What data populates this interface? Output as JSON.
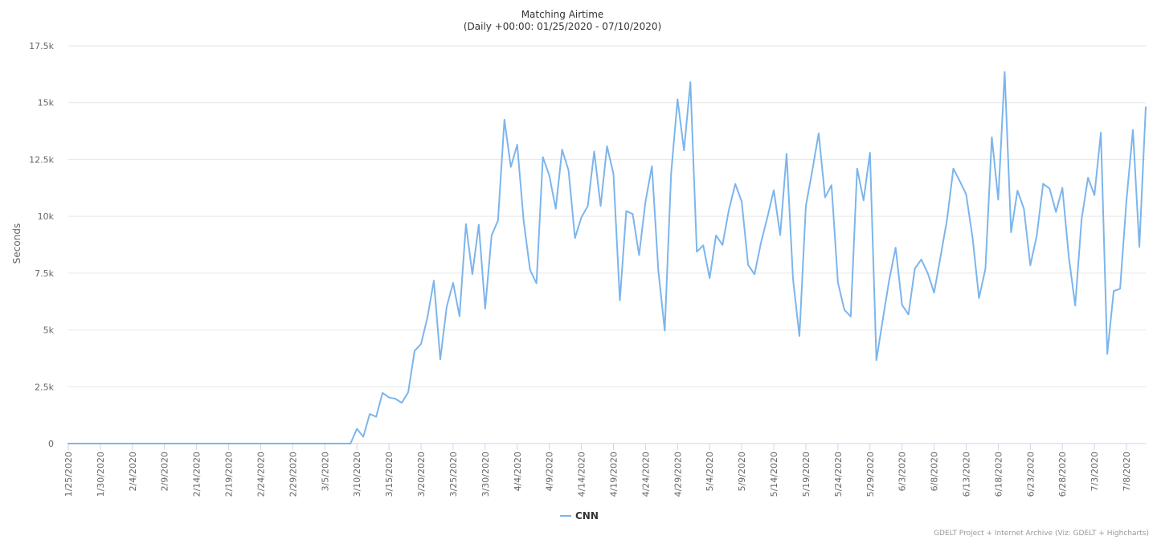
{
  "chart_data": {
    "type": "line",
    "title": "Matching Airtime",
    "subtitle": "(Daily +00:00: 01/25/2020 - 07/10/2020)",
    "xlabel": "",
    "ylabel": "Seconds",
    "x_start": "1/25/2020",
    "x_tick_labels": [
      "1/25/2020",
      "1/30/2020",
      "2/4/2020",
      "2/9/2020",
      "2/14/2020",
      "2/19/2020",
      "2/24/2020",
      "2/29/2020",
      "3/5/2020",
      "3/10/2020",
      "3/15/2020",
      "3/20/2020",
      "3/25/2020",
      "3/30/2020",
      "4/4/2020",
      "4/9/2020",
      "4/14/2020",
      "4/19/2020",
      "4/24/2020",
      "4/29/2020",
      "5/4/2020",
      "5/9/2020",
      "5/14/2020",
      "5/19/2020",
      "5/24/2020",
      "5/29/2020",
      "6/3/2020",
      "6/8/2020",
      "6/13/2020",
      "6/18/2020",
      "6/23/2020",
      "6/28/2020",
      "7/3/2020",
      "7/8/2020"
    ],
    "y_ticks": [
      0,
      2500,
      5000,
      7500,
      10000,
      12500,
      15000,
      17500
    ],
    "y_tick_labels": [
      "0",
      "2.5k",
      "5k",
      "7.5k",
      "10k",
      "12.5k",
      "15k",
      "17.5k"
    ],
    "ylim": [
      0,
      17500
    ],
    "grid": true,
    "legend": "bottom-center",
    "color": "#7cb5ec",
    "series": [
      {
        "name": "CNN",
        "values": [
          0,
          0,
          0,
          0,
          0,
          0,
          0,
          0,
          0,
          0,
          0,
          0,
          0,
          0,
          0,
          0,
          0,
          0,
          0,
          0,
          0,
          0,
          0,
          0,
          0,
          0,
          0,
          0,
          0,
          0,
          0,
          0,
          0,
          0,
          0,
          0,
          0,
          0,
          0,
          0,
          0,
          0,
          0,
          0,
          0,
          650,
          300,
          1300,
          1180,
          2230,
          2030,
          1970,
          1790,
          2260,
          4080,
          4380,
          5550,
          7170,
          3700,
          6020,
          7070,
          5600,
          9650,
          7450,
          9630,
          5940,
          9150,
          9820,
          14250,
          12170,
          13150,
          9800,
          7640,
          7050,
          12600,
          11800,
          10330,
          12930,
          12020,
          9040,
          9950,
          10450,
          12850,
          10450,
          13080,
          11870,
          6300,
          10230,
          10100,
          8290,
          10650,
          12200,
          7610,
          4970,
          11900,
          15150,
          12900,
          15900,
          8440,
          8720,
          7280,
          9160,
          8740,
          10280,
          11420,
          10650,
          7860,
          7450,
          8830,
          9950,
          11150,
          9170,
          12750,
          7240,
          4730,
          10450,
          12000,
          13650,
          10830,
          11370,
          7090,
          5890,
          5590,
          12100,
          10700,
          12800,
          3670,
          5460,
          7200,
          8620,
          6100,
          5680,
          7700,
          8100,
          7500,
          6640,
          8220,
          9820,
          12100,
          11550,
          10960,
          9050,
          6400,
          7690,
          13480,
          10730,
          16350,
          9300,
          11130,
          10330,
          7840,
          9140,
          11430,
          11220,
          10190,
          11250,
          8220,
          6070,
          9880,
          11700,
          10930,
          13680,
          3940,
          6710,
          6810,
          10720,
          13800,
          8650,
          14800
        ]
      }
    ]
  },
  "credits": "GDELT Project + Internet Archive (Viz: GDELT + Highcharts)"
}
